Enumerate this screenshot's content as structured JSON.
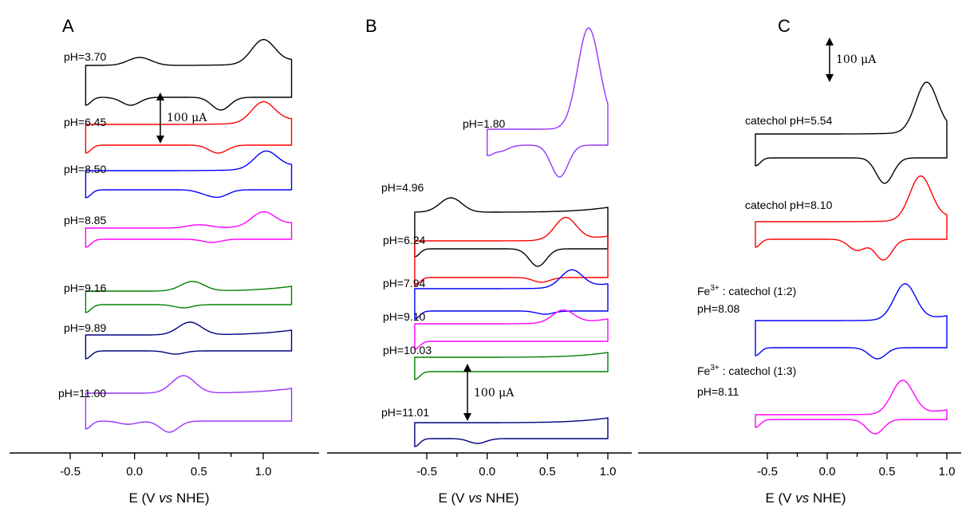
{
  "chart_data": [
    {
      "type": "line",
      "panel": "A",
      "xlabel": {
        "prefix": "E (V ",
        "italic": "vs",
        "suffix": " NHE)"
      },
      "xticks": [
        "-0.5",
        "0.0",
        "0.5",
        "1.0"
      ],
      "xlim": [
        -0.5,
        1.25
      ],
      "scale_bar": "100 μA",
      "series": [
        {
          "name": "pH=3.70",
          "color": "#000000",
          "peaks": [
            {
              "E": 1.0,
              "h": 30
            },
            {
              "E": 0.04,
              "h": 10
            }
          ],
          "troughs": [
            {
              "E": 0.67,
              "d": 16
            },
            {
              "E": -0.03,
              "d": 10
            }
          ]
        },
        {
          "name": "pH=6.45",
          "color": "#ff0000",
          "peaks": [
            {
              "E": 1.0,
              "h": 26
            }
          ],
          "troughs": [
            {
              "E": 0.65,
              "d": 10
            }
          ]
        },
        {
          "name": "pH=8.50",
          "color": "#0000ff",
          "peaks": [
            {
              "E": 1.02,
              "h": 22
            }
          ],
          "troughs": [
            {
              "E": 0.66,
              "d": 8
            },
            {
              "E": 0.55,
              "d": 4
            }
          ]
        },
        {
          "name": "pH=8.85",
          "color": "#ff00ff",
          "peaks": [
            {
              "E": 1.0,
              "h": 18
            },
            {
              "E": 0.5,
              "h": 4
            }
          ],
          "troughs": [
            {
              "E": 0.6,
              "d": 4
            }
          ]
        },
        {
          "name": "pH=9.16",
          "color": "#008000",
          "peaks": [
            {
              "E": 0.45,
              "h": 12
            }
          ],
          "troughs": [
            {
              "E": 0.38,
              "d": 4
            }
          ]
        },
        {
          "name": "pH=9.89",
          "color": "#000080",
          "peaks": [
            {
              "E": 0.43,
              "h": 16
            }
          ],
          "troughs": [
            {
              "E": 0.32,
              "d": 4
            }
          ]
        },
        {
          "name": "pH=11.00",
          "color": "#9933ff",
          "peaks": [
            {
              "E": 0.38,
              "h": 22
            }
          ],
          "troughs": [
            {
              "E": 0.27,
              "d": 14
            },
            {
              "E": -0.05,
              "d": 4
            }
          ]
        }
      ]
    },
    {
      "type": "line",
      "panel": "B",
      "xlabel": {
        "prefix": "E (V ",
        "italic": "vs",
        "suffix": " NHE)"
      },
      "xticks": [
        "-0.5",
        "0.0",
        "0.5",
        "1.0"
      ],
      "xlim": [
        -0.6,
        1.05
      ],
      "scale_bar": "100 μA",
      "series": [
        {
          "name": "pH=1.80",
          "color": "#9933ff",
          "peaks": [
            {
              "E": 0.84,
              "h": 125
            }
          ],
          "troughs": [
            {
              "E": 0.6,
              "d": 40
            },
            {
              "E": 0.1,
              "d": 8
            }
          ]
        },
        {
          "name": "pH=4.96",
          "color": "#000000",
          "peaks": [
            {
              "E": -0.3,
              "h": 18
            }
          ],
          "troughs": [
            {
              "E": 0.42,
              "d": 22
            }
          ]
        },
        {
          "name": "pH=6.24",
          "color": "#ff0000",
          "peaks": [
            {
              "E": 0.65,
              "h": 28
            }
          ],
          "troughs": [
            {
              "E": 0.45,
              "d": 6
            }
          ]
        },
        {
          "name": "pH=7.94",
          "color": "#0000ff",
          "peaks": [
            {
              "E": 0.7,
              "h": 22
            }
          ],
          "troughs": [
            {
              "E": 0.48,
              "d": 4
            }
          ]
        },
        {
          "name": "pH=9.10",
          "color": "#ff00ff",
          "peaks": [
            {
              "E": 0.63,
              "h": 16
            }
          ],
          "troughs": []
        },
        {
          "name": "pH=10.03",
          "color": "#008000",
          "peaks": [],
          "troughs": []
        },
        {
          "name": "pH=11.01",
          "color": "#000080",
          "peaks": [],
          "troughs": [
            {
              "E": -0.08,
              "d": 6
            }
          ]
        }
      ]
    },
    {
      "type": "line",
      "panel": "C",
      "xlabel": {
        "prefix": "E (V ",
        "italic": "vs",
        "suffix": " NHE)"
      },
      "xticks": [
        "-0.5",
        "0.0",
        "0.5",
        "1.0"
      ],
      "xlim": [
        -0.6,
        1.0
      ],
      "scale_bar": "100 μA",
      "series": [
        {
          "name": "catechol pH=5.54",
          "lines": [
            "catechol pH=5.54"
          ],
          "color": "#000000",
          "peaks": [
            {
              "E": 0.83,
              "h": 62
            }
          ],
          "troughs": [
            {
              "E": 0.48,
              "d": 32
            }
          ]
        },
        {
          "name": "catechol pH=8.10",
          "lines": [
            "catechol pH=8.10"
          ],
          "color": "#ff0000",
          "peaks": [
            {
              "E": 0.78,
              "h": 55
            }
          ],
          "troughs": [
            {
              "E": 0.47,
              "d": 26
            },
            {
              "E": 0.25,
              "d": 14
            }
          ]
        },
        {
          "name": "Fe3+ : catechol (1:2) pH=8.08",
          "lines": [
            "Fe3+ : catechol (1:2)",
            "pH=8.08"
          ],
          "color": "#0000ff",
          "peaks": [
            {
              "E": 0.65,
              "h": 45
            }
          ],
          "troughs": [
            {
              "E": 0.42,
              "d": 14
            }
          ]
        },
        {
          "name": "Fe3+ : catechol (1:3) pH=8.11",
          "lines": [
            "Fe3+ : catechol (1:3)",
            "pH=8.11"
          ],
          "color": "#ff00ff",
          "peaks": [
            {
              "E": 0.63,
              "h": 42
            }
          ],
          "troughs": [
            {
              "E": 0.4,
              "d": 18
            }
          ]
        }
      ]
    }
  ]
}
